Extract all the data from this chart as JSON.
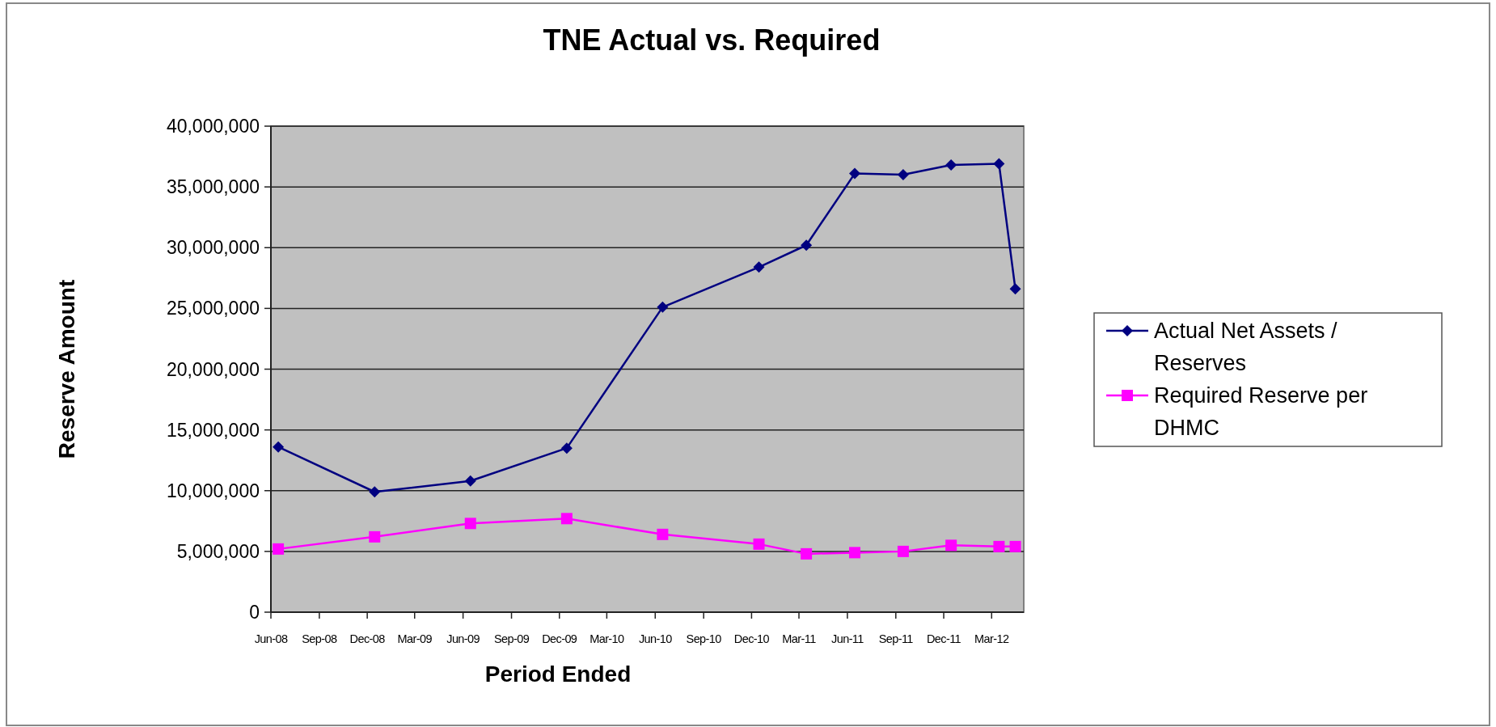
{
  "chart_data": {
    "type": "line",
    "title": "TNE Actual vs. Required",
    "xlabel": "Period Ended",
    "ylabel": "Reserve Amount",
    "x": [
      "2008-06-15",
      "2008-12-15",
      "2009-06-15",
      "2009-12-15",
      "2010-06-15",
      "2010-12-15",
      "2011-03-15",
      "2011-06-15",
      "2011-09-15",
      "2011-12-15",
      "2012-03-15",
      "2012-04-15"
    ],
    "series": [
      {
        "name": "Actual Net Assets / Reserves",
        "color": "#000080",
        "marker": "diamond",
        "values": [
          13600000,
          9900000,
          10800000,
          13500000,
          25100000,
          28400000,
          30200000,
          36100000,
          36000000,
          36800000,
          36900000,
          26600000
        ]
      },
      {
        "name": "Required Reserve per DHMC",
        "color": "#ff00ff",
        "marker": "square",
        "values": [
          5200000,
          6200000,
          7300000,
          7700000,
          6400000,
          5600000,
          4800000,
          4900000,
          5000000,
          5500000,
          5400000,
          5400000
        ]
      }
    ],
    "xlim": [
      "2008-06-01",
      "2012-05-01"
    ],
    "xticks": [
      {
        "value": "2008-06-01",
        "label": "Jun-08"
      },
      {
        "value": "2008-09-01",
        "label": "Sep-08"
      },
      {
        "value": "2008-12-01",
        "label": "Dec-08"
      },
      {
        "value": "2009-03-01",
        "label": "Mar-09"
      },
      {
        "value": "2009-06-01",
        "label": "Jun-09"
      },
      {
        "value": "2009-09-01",
        "label": "Sep-09"
      },
      {
        "value": "2009-12-01",
        "label": "Dec-09"
      },
      {
        "value": "2010-03-01",
        "label": "Mar-10"
      },
      {
        "value": "2010-06-01",
        "label": "Jun-10"
      },
      {
        "value": "2010-09-01",
        "label": "Sep-10"
      },
      {
        "value": "2010-12-01",
        "label": "Dec-10"
      },
      {
        "value": "2011-03-01",
        "label": "Mar-11"
      },
      {
        "value": "2011-06-01",
        "label": "Jun-11"
      },
      {
        "value": "2011-09-01",
        "label": "Sep-11"
      },
      {
        "value": "2011-12-01",
        "label": "Dec-11"
      },
      {
        "value": "2012-03-01",
        "label": "Mar-12"
      }
    ],
    "ylim": [
      0,
      40000000
    ],
    "yticks": [
      {
        "value": 0,
        "label": "0"
      },
      {
        "value": 5000000,
        "label": "5,000,000"
      },
      {
        "value": 10000000,
        "label": "10,000,000"
      },
      {
        "value": 15000000,
        "label": "15,000,000"
      },
      {
        "value": 20000000,
        "label": "20,000,000"
      },
      {
        "value": 25000000,
        "label": "25,000,000"
      },
      {
        "value": 30000000,
        "label": "30,000,000"
      },
      {
        "value": 35000000,
        "label": "35,000,000"
      },
      {
        "value": 40000000,
        "label": "40,000,000"
      }
    ],
    "grid": "y",
    "legend": "right",
    "line_style": "solid"
  }
}
